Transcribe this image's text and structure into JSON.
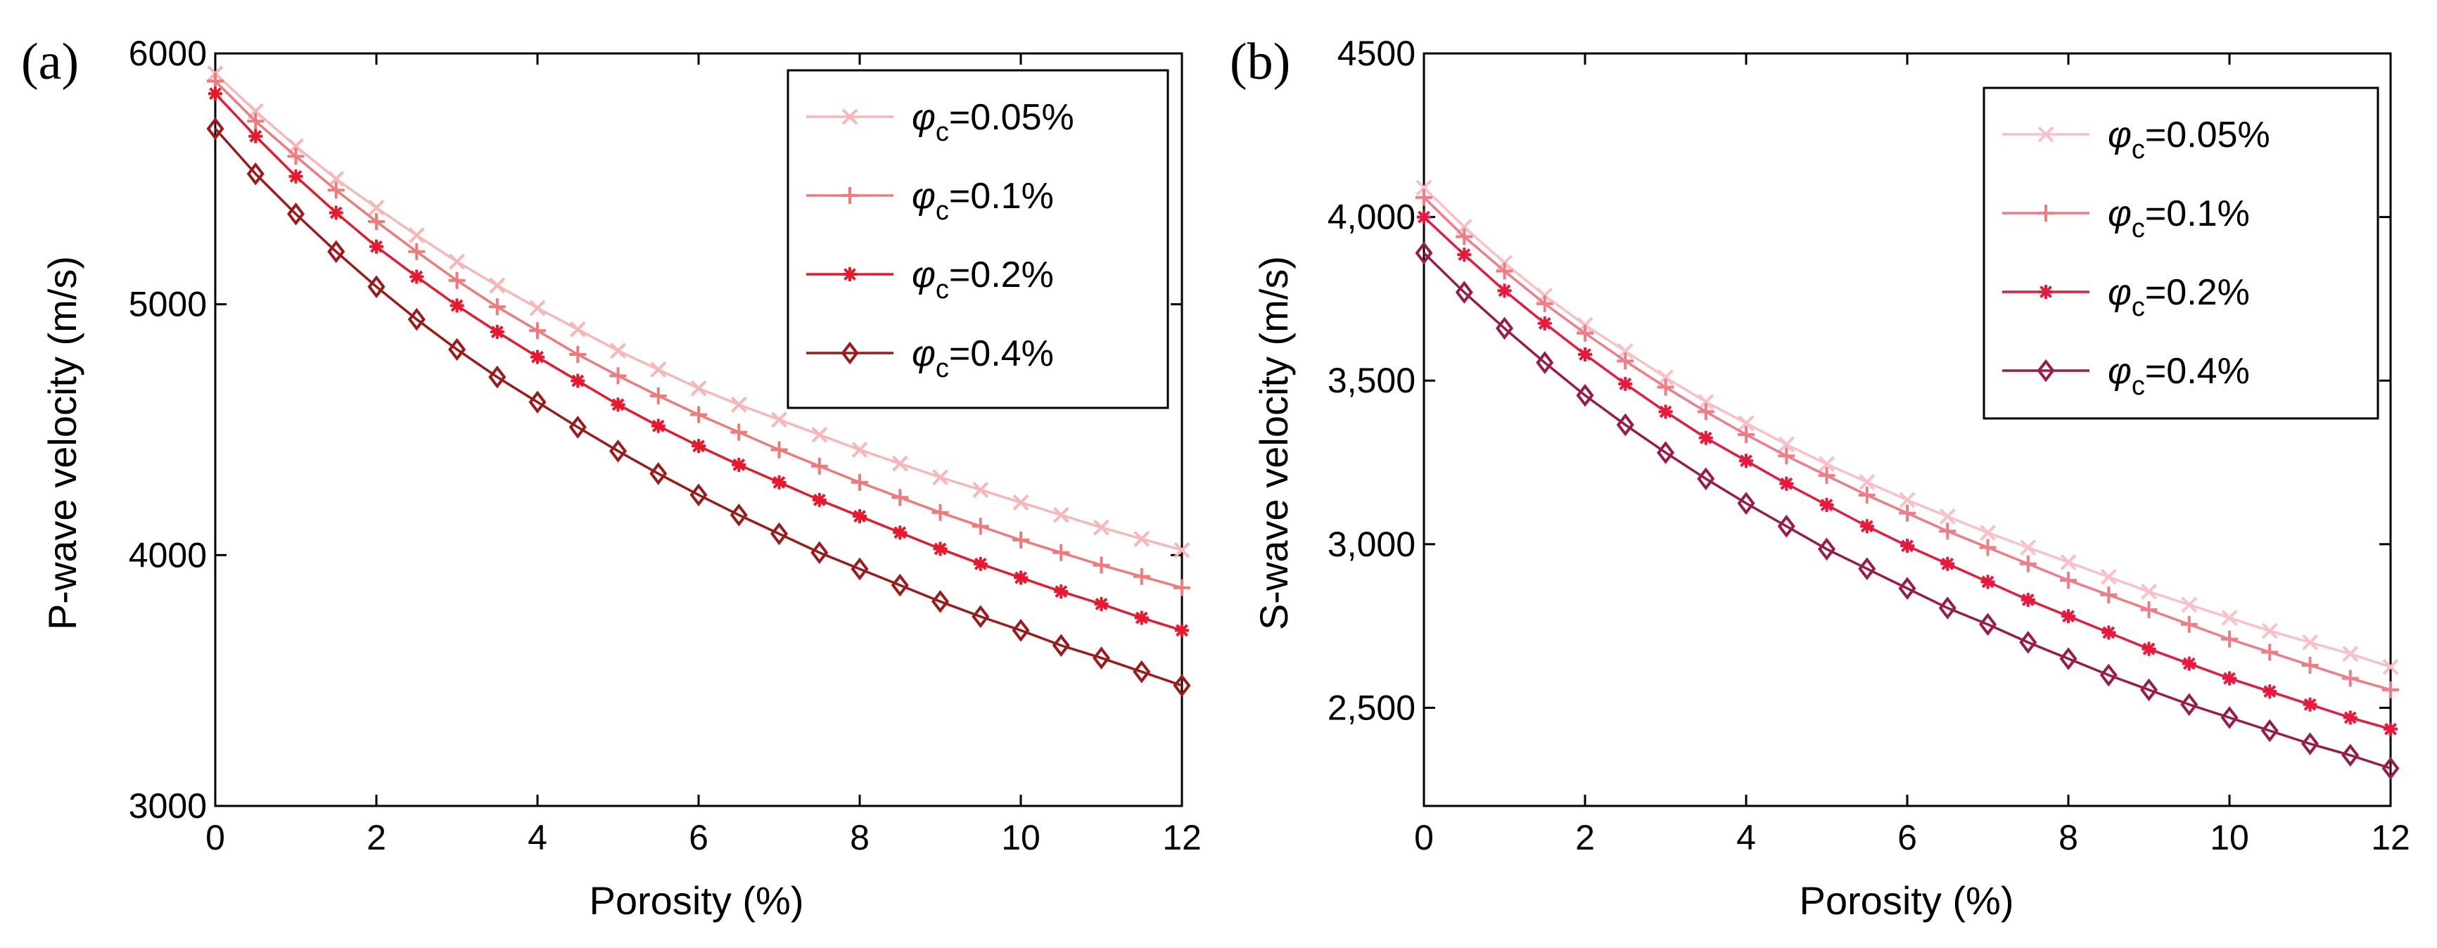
{
  "chart_data": [
    {
      "type": "line",
      "panel_label": "(a)",
      "xlabel": "Porosity (%)",
      "ylabel": "P-wave velocity (m/s)",
      "xlim": [
        0,
        12
      ],
      "ylim": [
        3000,
        6000
      ],
      "x_ticks": [
        0,
        2,
        4,
        6,
        8,
        10,
        12
      ],
      "y_ticks": [
        3000,
        4000,
        5000,
        6000
      ],
      "x_tick_labels": [
        "0",
        "2",
        "4",
        "6",
        "8",
        "10",
        "12"
      ],
      "y_tick_labels": [
        "3000",
        "4000",
        "5000",
        "6000"
      ],
      "legend_position": "top-right",
      "x": [
        0,
        0.5,
        1,
        1.5,
        2,
        2.5,
        3,
        3.5,
        4,
        4.5,
        5,
        5.5,
        6,
        6.5,
        7,
        7.5,
        8,
        8.5,
        9,
        9.5,
        10,
        10.5,
        11,
        11.5,
        12
      ],
      "series": [
        {
          "name": "φc=0.05%",
          "symbol": "φ",
          "subscript": "c",
          "suffix": "=0.05%",
          "color": "#f7b7b7",
          "marker": "x",
          "values": [
            5920,
            5770,
            5630,
            5500,
            5385,
            5275,
            5170,
            5075,
            4985,
            4900,
            4815,
            4740,
            4665,
            4600,
            4540,
            4480,
            4420,
            4365,
            4310,
            4260,
            4210,
            4160,
            4110,
            4065,
            4020
          ]
        },
        {
          "name": "φc=0.1%",
          "symbol": "φ",
          "subscript": "c",
          "suffix": "=0.1%",
          "color": "#f07a7a",
          "marker": "plus",
          "values": [
            5890,
            5730,
            5590,
            5455,
            5330,
            5210,
            5095,
            4990,
            4895,
            4800,
            4715,
            4635,
            4560,
            4490,
            4420,
            4355,
            4290,
            4230,
            4170,
            4115,
            4060,
            4010,
            3960,
            3915,
            3870
          ]
        },
        {
          "name": "φc=0.2%",
          "symbol": "φ",
          "subscript": "c",
          "suffix": "=0.2%",
          "color": "#e8192c",
          "marker": "asterisk",
          "values": [
            5840,
            5670,
            5510,
            5365,
            5230,
            5110,
            4995,
            4890,
            4790,
            4695,
            4600,
            4515,
            4435,
            4360,
            4290,
            4220,
            4155,
            4090,
            4025,
            3965,
            3910,
            3855,
            3805,
            3750,
            3700
          ]
        },
        {
          "name": "φc=0.4%",
          "symbol": "φ",
          "subscript": "c",
          "suffix": "=0.4%",
          "color": "#9e1a1a",
          "marker": "diamond",
          "values": [
            5700,
            5520,
            5360,
            5210,
            5070,
            4940,
            4820,
            4710,
            4610,
            4510,
            4415,
            4325,
            4240,
            4160,
            4085,
            4010,
            3945,
            3880,
            3815,
            3755,
            3700,
            3640,
            3590,
            3535,
            3480
          ]
        }
      ]
    },
    {
      "type": "line",
      "panel_label": "(b)",
      "xlabel": "Porosity (%)",
      "ylabel": "S-wave velocity (m/s)",
      "xlim": [
        0,
        12
      ],
      "ylim": [
        2200,
        4500
      ],
      "x_ticks": [
        0,
        2,
        4,
        6,
        8,
        10,
        12
      ],
      "y_ticks": [
        2500,
        3000,
        3500,
        4000,
        4500
      ],
      "x_tick_labels": [
        "0",
        "2",
        "4",
        "6",
        "8",
        "10",
        "12"
      ],
      "y_tick_labels": [
        "2,500",
        "3,000",
        "3,500",
        "4,000",
        "4500"
      ],
      "legend_position": "top-right",
      "x": [
        0,
        0.5,
        1,
        1.5,
        2,
        2.5,
        3,
        3.5,
        4,
        4.5,
        5,
        5.5,
        6,
        6.5,
        7,
        7.5,
        8,
        8.5,
        9,
        9.5,
        10,
        10.5,
        11,
        11.5,
        12
      ],
      "series": [
        {
          "name": "φc=0.05%",
          "symbol": "φ",
          "subscript": "c",
          "suffix": "=0.05%",
          "color": "#f9c0c8",
          "marker": "x",
          "values": [
            4090,
            3970,
            3860,
            3760,
            3670,
            3590,
            3510,
            3435,
            3370,
            3305,
            3245,
            3190,
            3135,
            3085,
            3035,
            2990,
            2945,
            2900,
            2855,
            2815,
            2775,
            2735,
            2700,
            2665,
            2625
          ]
        },
        {
          "name": "φc=0.1%",
          "symbol": "φ",
          "subscript": "c",
          "suffix": "=0.1%",
          "color": "#f07c86",
          "marker": "plus",
          "values": [
            4060,
            3940,
            3835,
            3735,
            3645,
            3560,
            3480,
            3405,
            3335,
            3270,
            3210,
            3150,
            3095,
            3040,
            2990,
            2940,
            2890,
            2845,
            2800,
            2755,
            2710,
            2670,
            2630,
            2590,
            2555
          ]
        },
        {
          "name": "φc=0.2%",
          "symbol": "φ",
          "subscript": "c",
          "suffix": "=0.2%",
          "color": "#e8193c",
          "marker": "asterisk",
          "values": [
            4000,
            3885,
            3775,
            3675,
            3580,
            3490,
            3405,
            3325,
            3255,
            3185,
            3120,
            3055,
            2995,
            2940,
            2885,
            2830,
            2780,
            2730,
            2680,
            2635,
            2590,
            2550,
            2510,
            2470,
            2435
          ]
        },
        {
          "name": "φc=0.4%",
          "symbol": "φ",
          "subscript": "c",
          "suffix": "=0.4%",
          "color": "#9b1a4a",
          "marker": "diamond",
          "values": [
            3890,
            3770,
            3660,
            3555,
            3455,
            3365,
            3280,
            3200,
            3125,
            3055,
            2985,
            2925,
            2865,
            2805,
            2755,
            2700,
            2650,
            2600,
            2555,
            2510,
            2470,
            2430,
            2390,
            2355,
            2315
          ]
        }
      ]
    }
  ]
}
